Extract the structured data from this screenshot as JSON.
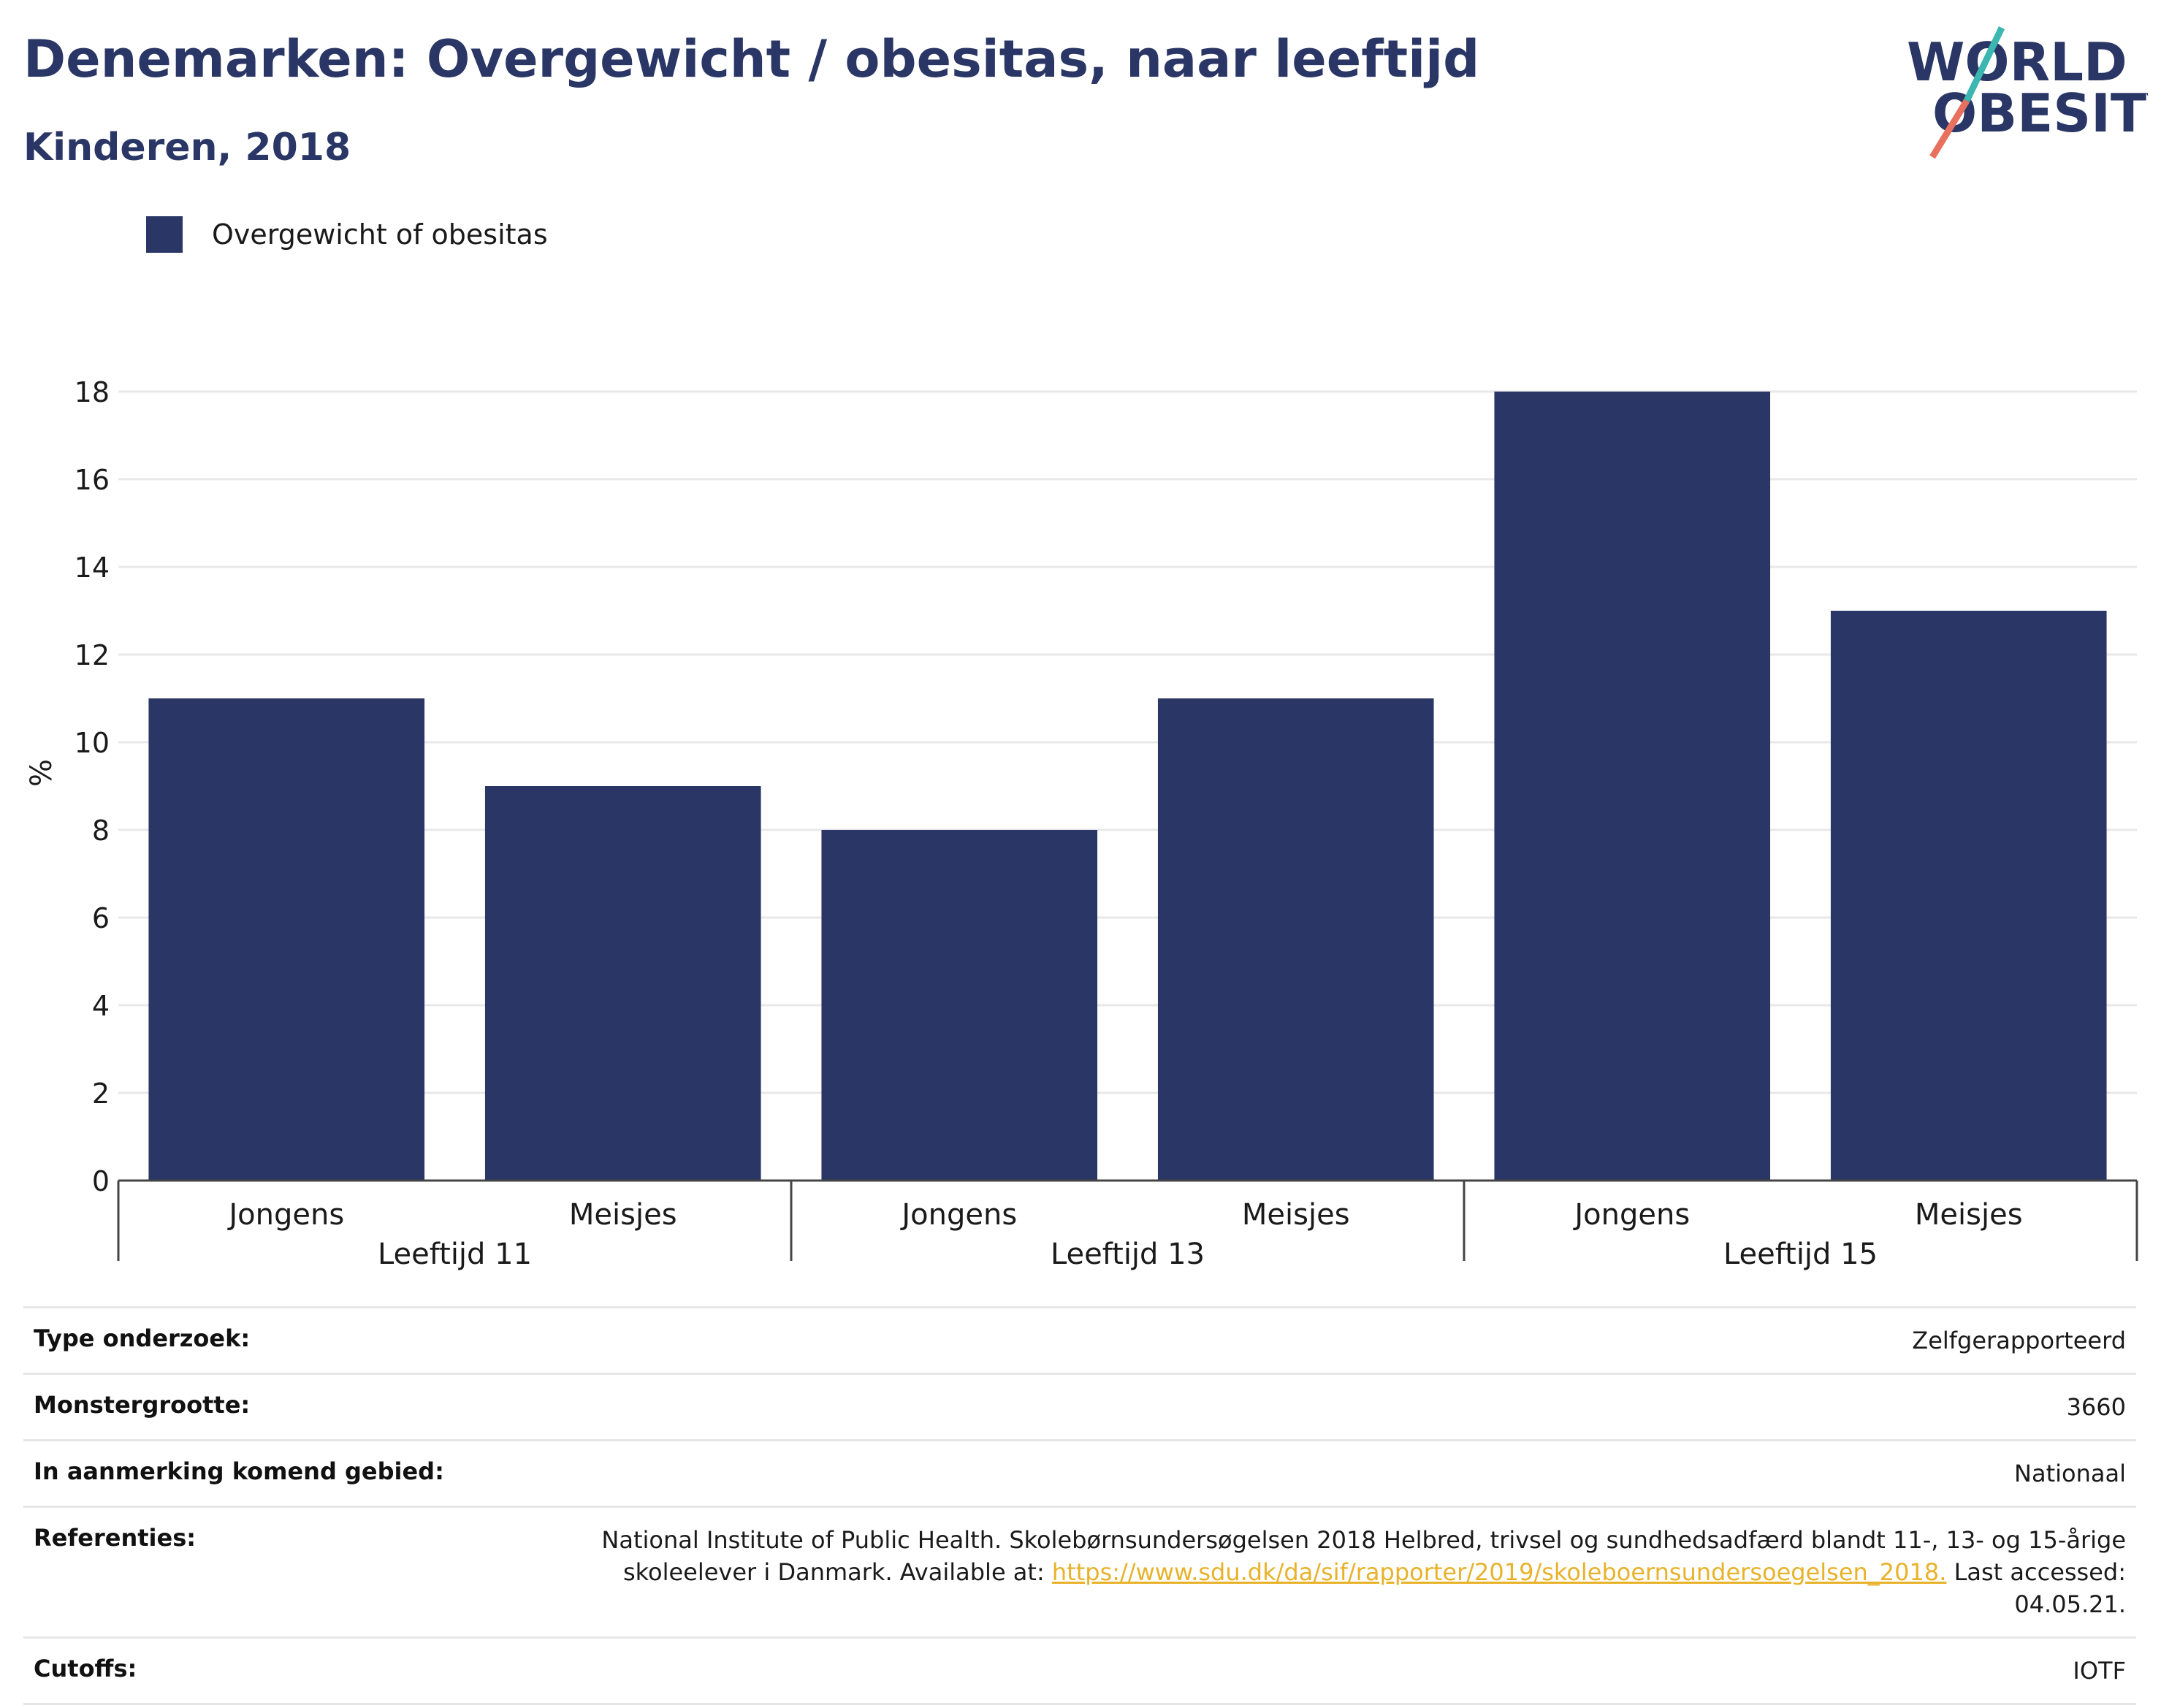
{
  "header": {
    "title": "Denemarken: Overgewicht / obesitas, naar leeftijd",
    "subtitle": "Kinderen, 2018"
  },
  "logo": {
    "line1": "WORLD",
    "line2": "OBESITY",
    "colors": {
      "text": "#2a3665",
      "slash_top": "#3bb6b0",
      "slash_bottom": "#e8705e"
    }
  },
  "legend": {
    "label": "Overgewicht of obesitas",
    "color": "#2a3665"
  },
  "chart_data": {
    "type": "bar",
    "ylabel": "%",
    "ylim": [
      0,
      18.6
    ],
    "yticks": [
      0,
      2,
      4,
      6,
      8,
      10,
      12,
      14,
      16,
      18
    ],
    "grid": true,
    "legend_position": "top-left",
    "bar_color": "#2a3665",
    "groups": [
      {
        "label": "Leeftijd 11",
        "categories": [
          "Jongens",
          "Meisjes"
        ],
        "values": [
          11,
          9
        ]
      },
      {
        "label": "Leeftijd 13",
        "categories": [
          "Jongens",
          "Meisjes"
        ],
        "values": [
          8,
          11
        ]
      },
      {
        "label": "Leeftijd 15",
        "categories": [
          "Jongens",
          "Meisjes"
        ],
        "values": [
          18,
          13
        ]
      }
    ],
    "series": [
      {
        "name": "Overgewicht of obesitas"
      }
    ]
  },
  "meta": {
    "rows": [
      {
        "label": "Type onderzoek:",
        "value": "Zelfgerapporteerd"
      },
      {
        "label": "Monstergrootte:",
        "value": "3660"
      },
      {
        "label": "In aanmerking komend gebied:",
        "value": "Nationaal"
      },
      {
        "label": "Referenties:",
        "value_before": "National Institute of Public Health. Skolebørnsundersøgelsen 2018 Helbred, trivsel og sundhedsadfærd blandt 11-, 13- og 15-årige skoleelever i Danmark. Available at: ",
        "link": "https://www.sdu.dk/da/sif/rapporter/2019/skoleboernsundersoegelsen_2018.",
        "value_after": " Last accessed: 04.05.21."
      },
      {
        "label": "Cutoffs:",
        "value": "IOTF"
      }
    ]
  }
}
